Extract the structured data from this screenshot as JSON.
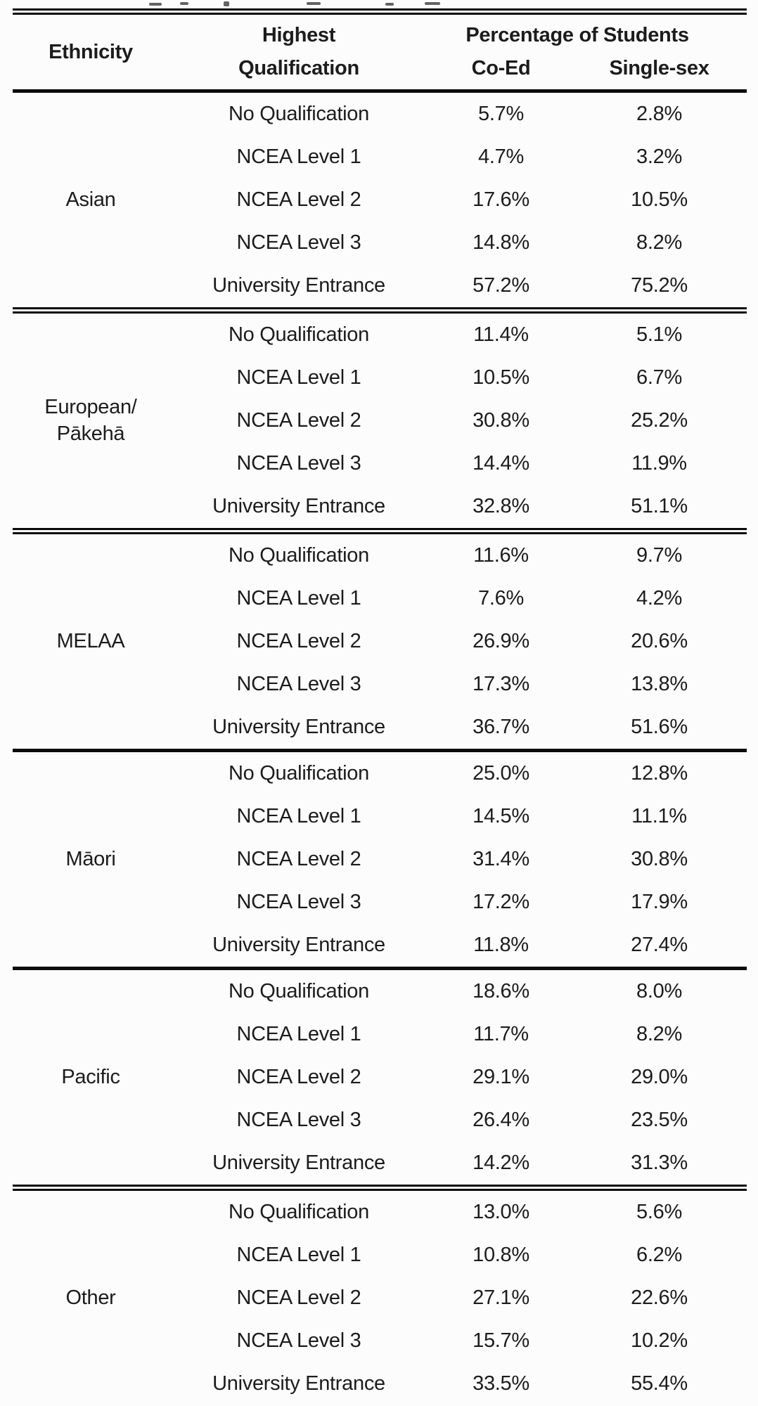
{
  "page": {
    "background": "#fcfcfc",
    "text_color": "#1c1c1c",
    "rule_color": "#0c0c0c"
  },
  "header": {
    "ethnicity": "Ethnicity",
    "qualification_top": "Highest",
    "qualification_bottom": "Qualification",
    "percentage_group": "Percentage of Students",
    "coed": "Co-Ed",
    "single_sex": "Single-sex"
  },
  "sections": [
    {
      "ethnicity": "Asian",
      "divider_after": "double",
      "rows": [
        {
          "qualification": "No Qualification",
          "coed": "5.7%",
          "single_sex": "2.8%"
        },
        {
          "qualification": "NCEA Level 1",
          "coed": "4.7%",
          "single_sex": "3.2%"
        },
        {
          "qualification": "NCEA Level 2",
          "coed": "17.6%",
          "single_sex": "10.5%"
        },
        {
          "qualification": "NCEA Level 3",
          "coed": "14.8%",
          "single_sex": "8.2%"
        },
        {
          "qualification": "University Entrance",
          "coed": "57.2%",
          "single_sex": "75.2%"
        }
      ]
    },
    {
      "ethnicity": "European/\nPākehā",
      "divider_after": "double",
      "rows": [
        {
          "qualification": "No Qualification",
          "coed": "11.4%",
          "single_sex": "5.1%"
        },
        {
          "qualification": "NCEA Level 1",
          "coed": "10.5%",
          "single_sex": "6.7%"
        },
        {
          "qualification": "NCEA Level 2",
          "coed": "30.8%",
          "single_sex": "25.2%"
        },
        {
          "qualification": "NCEA Level 3",
          "coed": "14.4%",
          "single_sex": "11.9%"
        },
        {
          "qualification": "University Entrance",
          "coed": "32.8%",
          "single_sex": "51.1%"
        }
      ]
    },
    {
      "ethnicity": "MELAA",
      "divider_after": "single",
      "rows": [
        {
          "qualification": "No Qualification",
          "coed": "11.6%",
          "single_sex": "9.7%"
        },
        {
          "qualification": "NCEA Level 1",
          "coed": "7.6%",
          "single_sex": "4.2%"
        },
        {
          "qualification": "NCEA Level 2",
          "coed": "26.9%",
          "single_sex": "20.6%"
        },
        {
          "qualification": "NCEA Level 3",
          "coed": "17.3%",
          "single_sex": "13.8%"
        },
        {
          "qualification": "University Entrance",
          "coed": "36.7%",
          "single_sex": "51.6%"
        }
      ]
    },
    {
      "ethnicity": "Māori",
      "divider_after": "single",
      "rows": [
        {
          "qualification": "No Qualification",
          "coed": "25.0%",
          "single_sex": "12.8%"
        },
        {
          "qualification": "NCEA Level 1",
          "coed": "14.5%",
          "single_sex": "11.1%"
        },
        {
          "qualification": "NCEA Level 2",
          "coed": "31.4%",
          "single_sex": "30.8%"
        },
        {
          "qualification": "NCEA Level 3",
          "coed": "17.2%",
          "single_sex": "17.9%"
        },
        {
          "qualification": "University Entrance",
          "coed": "11.8%",
          "single_sex": "27.4%"
        }
      ]
    },
    {
      "ethnicity": "Pacific",
      "divider_after": "double",
      "rows": [
        {
          "qualification": "No Qualification",
          "coed": "18.6%",
          "single_sex": "8.0%"
        },
        {
          "qualification": "NCEA Level 1",
          "coed": "11.7%",
          "single_sex": "8.2%"
        },
        {
          "qualification": "NCEA Level 2",
          "coed": "29.1%",
          "single_sex": "29.0%"
        },
        {
          "qualification": "NCEA Level 3",
          "coed": "26.4%",
          "single_sex": "23.5%"
        },
        {
          "qualification": "University Entrance",
          "coed": "14.2%",
          "single_sex": "31.3%"
        }
      ]
    },
    {
      "ethnicity": "Other",
      "divider_after": "none",
      "rows": [
        {
          "qualification": "No Qualification",
          "coed": "13.0%",
          "single_sex": "5.6%"
        },
        {
          "qualification": "NCEA Level 1",
          "coed": "10.8%",
          "single_sex": "6.2%"
        },
        {
          "qualification": "NCEA Level 2",
          "coed": "27.1%",
          "single_sex": "22.6%"
        },
        {
          "qualification": "NCEA Level 3",
          "coed": "15.7%",
          "single_sex": "10.2%"
        },
        {
          "qualification": "University Entrance",
          "coed": "33.5%",
          "single_sex": "55.4%"
        }
      ]
    }
  ]
}
